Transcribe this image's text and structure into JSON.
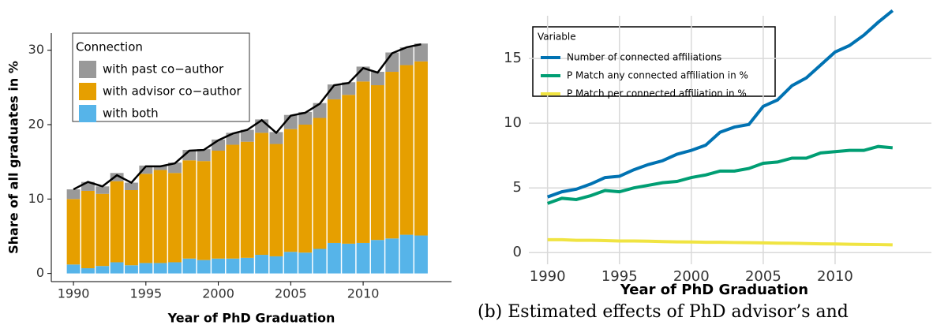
{
  "chart_data": [
    {
      "type": "bar",
      "stacked": true,
      "y_label": "Share of all graduates in %",
      "x_label": "Year of PhD Graduation",
      "legend_title": "Connection",
      "x": [
        1990,
        1991,
        1992,
        1993,
        1994,
        1995,
        1996,
        1997,
        1998,
        1999,
        2000,
        2001,
        2002,
        2003,
        2004,
        2005,
        2006,
        2007,
        2008,
        2009,
        2010,
        2011,
        2012,
        2013,
        2014
      ],
      "series": [
        {
          "name": "with both",
          "color": "#56b4e9",
          "values": [
            1.2,
            0.7,
            1.0,
            1.5,
            1.1,
            1.4,
            1.4,
            1.5,
            2.0,
            1.8,
            2.0,
            2.0,
            2.1,
            2.5,
            2.3,
            2.9,
            2.8,
            3.3,
            4.1,
            4.0,
            4.1,
            4.5,
            4.7,
            5.2,
            5.1
          ]
        },
        {
          "name": "with advisor co−author",
          "color": "#e69f00",
          "values": [
            8.8,
            10.4,
            9.7,
            10.9,
            10.1,
            12.0,
            12.5,
            12.0,
            13.2,
            13.3,
            14.5,
            15.3,
            15.6,
            16.4,
            15.1,
            16.5,
            17.2,
            17.6,
            19.3,
            20.0,
            21.7,
            20.8,
            22.4,
            22.8,
            23.4
          ]
        },
        {
          "name": "with past co−author",
          "color": "#999999",
          "values": [
            1.3,
            1.2,
            1.0,
            1.1,
            1.0,
            1.1,
            0.6,
            1.4,
            1.4,
            1.6,
            1.5,
            1.6,
            1.6,
            1.8,
            1.6,
            1.9,
            1.7,
            2.0,
            2.0,
            1.7,
            2.0,
            1.8,
            2.6,
            2.4,
            2.4
          ]
        }
      ],
      "total_line": {
        "color": "#000000",
        "values": [
          11.3,
          12.3,
          11.7,
          13.2,
          12.2,
          14.4,
          14.4,
          14.8,
          16.5,
          16.6,
          17.9,
          18.8,
          19.3,
          20.6,
          18.9,
          21.2,
          21.6,
          22.8,
          25.3,
          25.6,
          27.6,
          27.0,
          29.6,
          30.4,
          30.8
        ]
      },
      "xlim": [
        1988.47,
        2016.1
      ],
      "ylim": [
        -1.1,
        32.3
      ],
      "xticks": [
        1990,
        1995,
        2000,
        2005,
        2010
      ],
      "yticks": [
        0,
        10,
        20,
        30
      ]
    },
    {
      "type": "line",
      "x_label": "Year of PhD Graduation",
      "legend_title": "Variable",
      "grid": true,
      "caption": "(b)  Estimated effects of PhD advisor’s and",
      "x": [
        1990,
        1991,
        1992,
        1993,
        1994,
        1995,
        1996,
        1997,
        1998,
        1999,
        2000,
        2001,
        2002,
        2003,
        2004,
        2005,
        2006,
        2007,
        2008,
        2009,
        2010,
        2011,
        2012,
        2013,
        2014
      ],
      "series": [
        {
          "name": "Number of connected affiliations",
          "color": "#0072b2",
          "values": [
            4.3,
            4.7,
            4.9,
            5.3,
            5.8,
            5.9,
            6.4,
            6.8,
            7.1,
            7.6,
            7.9,
            8.3,
            9.3,
            9.7,
            9.9,
            11.3,
            11.8,
            12.9,
            13.5,
            14.5,
            15.5,
            16.0,
            16.8,
            17.8,
            18.7
          ]
        },
        {
          "name": "P Match any connected affiliation in %",
          "color": "#009e73",
          "values": [
            3.8,
            4.2,
            4.1,
            4.4,
            4.8,
            4.7,
            5.0,
            5.2,
            5.4,
            5.5,
            5.8,
            6.0,
            6.3,
            6.3,
            6.5,
            6.9,
            7.0,
            7.3,
            7.3,
            7.7,
            7.8,
            7.9,
            7.9,
            8.2,
            8.1
          ]
        },
        {
          "name": "P Match per connected affiliation in %",
          "color": "#f0e442",
          "values": [
            1.0,
            1.0,
            0.95,
            0.95,
            0.93,
            0.9,
            0.9,
            0.88,
            0.85,
            0.83,
            0.82,
            0.8,
            0.8,
            0.78,
            0.77,
            0.75,
            0.73,
            0.72,
            0.7,
            0.68,
            0.67,
            0.65,
            0.63,
            0.62,
            0.6
          ]
        }
      ],
      "xlim": [
        1988.7,
        2016.7
      ],
      "ylim": [
        -0.9,
        18.3
      ],
      "xticks": [
        1990,
        1995,
        2000,
        2005,
        2010
      ],
      "yticks": [
        0,
        5,
        10,
        15
      ]
    }
  ]
}
